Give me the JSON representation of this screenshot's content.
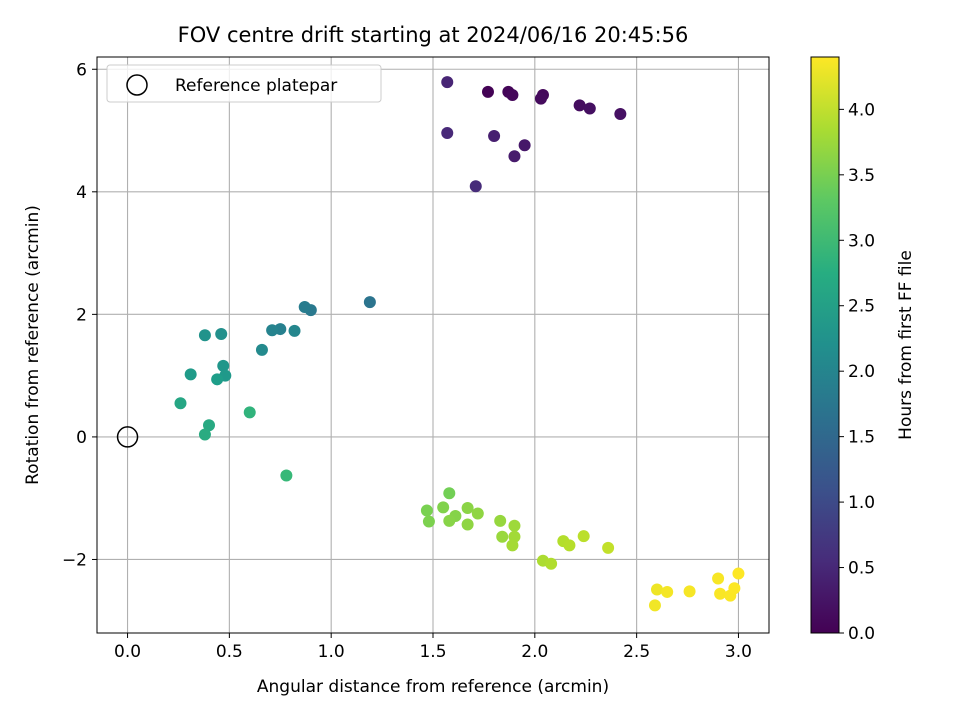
{
  "chart_data": {
    "type": "scatter",
    "title": "FOV centre drift starting at 2024/06/16 20:45:56",
    "xlabel": "Angular distance from reference (arcmin)",
    "ylabel": "Rotation from reference (arcmin)",
    "xlim": [
      -0.15,
      3.15
    ],
    "ylim": [
      -3.2,
      6.2
    ],
    "xticks": [
      0.0,
      0.5,
      1.0,
      1.5,
      2.0,
      2.5,
      3.0
    ],
    "xtick_labels": [
      "0.0",
      "0.5",
      "1.0",
      "1.5",
      "2.0",
      "2.5",
      "3.0"
    ],
    "yticks": [
      -2,
      0,
      2,
      4,
      6
    ],
    "ytick_labels": [
      "−2",
      "0",
      "2",
      "4",
      "6"
    ],
    "grid": true,
    "legend": {
      "placement": "top-left",
      "entries": [
        "Reference platepar"
      ]
    },
    "reference_point": {
      "x": 0.0,
      "y": 0.0,
      "label": "Reference platepar"
    },
    "colorbar": {
      "label": "Hours from first FF file",
      "colormap": "viridis",
      "range": [
        0.0,
        4.4
      ],
      "ticks": [
        0.0,
        0.5,
        1.0,
        1.5,
        2.0,
        2.5,
        3.0,
        3.5,
        4.0
      ],
      "tick_labels": [
        "0.0",
        "0.5",
        "1.0",
        "1.5",
        "2.0",
        "2.5",
        "3.0",
        "3.5",
        "4.0"
      ]
    },
    "points": [
      {
        "x": 1.77,
        "y": 5.63,
        "hours": 0.02
      },
      {
        "x": 1.87,
        "y": 5.63,
        "hours": 0.05
      },
      {
        "x": 1.89,
        "y": 5.58,
        "hours": 0.08
      },
      {
        "x": 2.04,
        "y": 5.58,
        "hours": 0.1
      },
      {
        "x": 2.03,
        "y": 5.52,
        "hours": 0.12
      },
      {
        "x": 2.22,
        "y": 5.41,
        "hours": 0.15
      },
      {
        "x": 2.27,
        "y": 5.36,
        "hours": 0.18
      },
      {
        "x": 2.42,
        "y": 5.27,
        "hours": 0.2
      },
      {
        "x": 1.95,
        "y": 4.76,
        "hours": 0.28
      },
      {
        "x": 1.9,
        "y": 4.58,
        "hours": 0.32
      },
      {
        "x": 1.8,
        "y": 4.91,
        "hours": 0.38
      },
      {
        "x": 1.57,
        "y": 5.79,
        "hours": 0.45
      },
      {
        "x": 1.57,
        "y": 4.96,
        "hours": 0.5
      },
      {
        "x": 1.71,
        "y": 4.09,
        "hours": 0.55
      },
      {
        "x": 1.19,
        "y": 2.2,
        "hours": 1.7
      },
      {
        "x": 0.9,
        "y": 2.07,
        "hours": 1.78
      },
      {
        "x": 0.87,
        "y": 2.12,
        "hours": 1.85
      },
      {
        "x": 0.75,
        "y": 1.76,
        "hours": 1.92
      },
      {
        "x": 0.71,
        "y": 1.74,
        "hours": 1.98
      },
      {
        "x": 0.82,
        "y": 1.73,
        "hours": 2.02
      },
      {
        "x": 0.66,
        "y": 1.42,
        "hours": 2.1
      },
      {
        "x": 0.46,
        "y": 1.68,
        "hours": 2.2
      },
      {
        "x": 0.38,
        "y": 1.66,
        "hours": 2.25
      },
      {
        "x": 0.47,
        "y": 1.16,
        "hours": 2.3
      },
      {
        "x": 0.48,
        "y": 1.0,
        "hours": 2.35
      },
      {
        "x": 0.31,
        "y": 1.02,
        "hours": 2.4
      },
      {
        "x": 0.44,
        "y": 0.94,
        "hours": 2.45
      },
      {
        "x": 0.26,
        "y": 0.55,
        "hours": 2.6
      },
      {
        "x": 0.4,
        "y": 0.19,
        "hours": 2.65
      },
      {
        "x": 0.38,
        "y": 0.04,
        "hours": 2.7
      },
      {
        "x": 0.6,
        "y": 0.4,
        "hours": 2.85
      },
      {
        "x": 0.78,
        "y": -0.63,
        "hours": 2.95
      },
      {
        "x": 1.58,
        "y": -0.92,
        "hours": 3.45
      },
      {
        "x": 1.47,
        "y": -1.2,
        "hours": 3.5
      },
      {
        "x": 1.48,
        "y": -1.38,
        "hours": 3.52
      },
      {
        "x": 1.55,
        "y": -1.15,
        "hours": 3.55
      },
      {
        "x": 1.61,
        "y": -1.29,
        "hours": 3.58
      },
      {
        "x": 1.58,
        "y": -1.37,
        "hours": 3.6
      },
      {
        "x": 1.67,
        "y": -1.16,
        "hours": 3.62
      },
      {
        "x": 1.72,
        "y": -1.25,
        "hours": 3.65
      },
      {
        "x": 1.67,
        "y": -1.43,
        "hours": 3.65
      },
      {
        "x": 1.83,
        "y": -1.37,
        "hours": 3.7
      },
      {
        "x": 1.84,
        "y": -1.63,
        "hours": 3.72
      },
      {
        "x": 1.9,
        "y": -1.45,
        "hours": 3.75
      },
      {
        "x": 1.9,
        "y": -1.63,
        "hours": 3.78
      },
      {
        "x": 1.89,
        "y": -1.77,
        "hours": 3.8
      },
      {
        "x": 2.04,
        "y": -2.02,
        "hours": 3.85
      },
      {
        "x": 2.08,
        "y": -2.07,
        "hours": 3.88
      },
      {
        "x": 2.14,
        "y": -1.7,
        "hours": 3.9
      },
      {
        "x": 2.17,
        "y": -1.77,
        "hours": 3.92
      },
      {
        "x": 2.24,
        "y": -1.62,
        "hours": 3.95
      },
      {
        "x": 2.36,
        "y": -1.81,
        "hours": 4.0
      },
      {
        "x": 2.6,
        "y": -2.49,
        "hours": 4.3
      },
      {
        "x": 2.59,
        "y": -2.75,
        "hours": 4.32
      },
      {
        "x": 2.65,
        "y": -2.53,
        "hours": 4.34
      },
      {
        "x": 2.76,
        "y": -2.52,
        "hours": 4.35
      },
      {
        "x": 2.9,
        "y": -2.31,
        "hours": 4.36
      },
      {
        "x": 2.91,
        "y": -2.56,
        "hours": 4.37
      },
      {
        "x": 2.96,
        "y": -2.59,
        "hours": 4.38
      },
      {
        "x": 2.98,
        "y": -2.47,
        "hours": 4.39
      },
      {
        "x": 3.0,
        "y": -2.23,
        "hours": 4.4
      }
    ]
  }
}
